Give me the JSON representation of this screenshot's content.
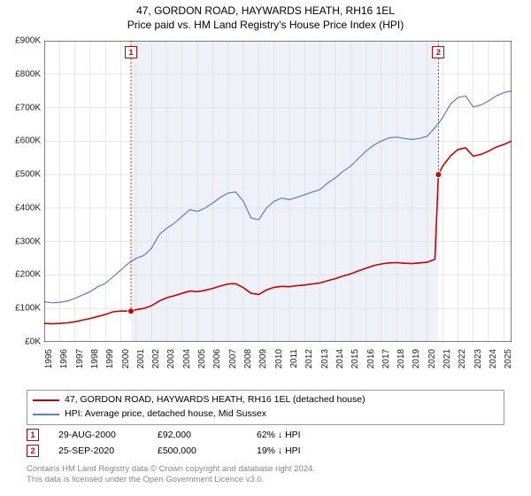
{
  "title": {
    "line1": "47, GORDON ROAD, HAYWARDS HEATH, RH16 1EL",
    "line2": "Price paid vs. HM Land Registry's House Price Index (HPI)",
    "fontsize": 12
  },
  "chart": {
    "type": "line",
    "background_color": "#ffffff",
    "shade_color": "#eef2f8",
    "shade_years": [
      2000.66,
      2020.73
    ],
    "grid_color": "#d8d8d8",
    "axis_color": "#000000",
    "tick_fontsize": 10,
    "ylim": [
      0,
      900
    ],
    "ytick_step": 100,
    "ytick_prefix": "£",
    "ytick_suffix": "K",
    "xlim": [
      1995,
      2025.5
    ],
    "xtick_step": 1,
    "xtick_rotation": -90,
    "series": [
      {
        "name": "HPI: Average price, detached house, Mid Sussex",
        "color": "#5b7fbf",
        "line_width": 1.2,
        "data": [
          [
            1995,
            120
          ],
          [
            1995.5,
            117
          ],
          [
            1996,
            118
          ],
          [
            1996.5,
            122
          ],
          [
            1997,
            130
          ],
          [
            1997.5,
            140
          ],
          [
            1998,
            150
          ],
          [
            1998.5,
            165
          ],
          [
            1999,
            175
          ],
          [
            1999.5,
            195
          ],
          [
            2000,
            215
          ],
          [
            2000.5,
            235
          ],
          [
            2001,
            250
          ],
          [
            2001.5,
            258
          ],
          [
            2002,
            280
          ],
          [
            2002.5,
            320
          ],
          [
            2003,
            340
          ],
          [
            2003.5,
            355
          ],
          [
            2004,
            375
          ],
          [
            2004.5,
            395
          ],
          [
            2005,
            390
          ],
          [
            2005.5,
            400
          ],
          [
            2006,
            415
          ],
          [
            2006.5,
            432
          ],
          [
            2007,
            445
          ],
          [
            2007.5,
            448
          ],
          [
            2008,
            420
          ],
          [
            2008.5,
            370
          ],
          [
            2009,
            365
          ],
          [
            2009.5,
            400
          ],
          [
            2010,
            420
          ],
          [
            2010.5,
            430
          ],
          [
            2011,
            425
          ],
          [
            2011.5,
            432
          ],
          [
            2012,
            440
          ],
          [
            2012.5,
            448
          ],
          [
            2013,
            455
          ],
          [
            2013.5,
            475
          ],
          [
            2014,
            490
          ],
          [
            2014.5,
            510
          ],
          [
            2015,
            525
          ],
          [
            2015.5,
            548
          ],
          [
            2016,
            570
          ],
          [
            2016.5,
            588
          ],
          [
            2017,
            600
          ],
          [
            2017.5,
            610
          ],
          [
            2018,
            612
          ],
          [
            2018.5,
            608
          ],
          [
            2019,
            605
          ],
          [
            2019.5,
            608
          ],
          [
            2020,
            615
          ],
          [
            2020.5,
            640
          ],
          [
            2021,
            670
          ],
          [
            2021.5,
            710
          ],
          [
            2022,
            730
          ],
          [
            2022.5,
            735
          ],
          [
            2023,
            702
          ],
          [
            2023.5,
            708
          ],
          [
            2024,
            720
          ],
          [
            2024.5,
            735
          ],
          [
            2025,
            745
          ],
          [
            2025.5,
            750
          ]
        ]
      },
      {
        "name": "47, GORDON ROAD, HAYWARDS HEATH, RH16 1EL (detached house)",
        "color": "#cc0000",
        "line_width": 1.6,
        "data": [
          [
            1995,
            55
          ],
          [
            1995.5,
            54
          ],
          [
            1996,
            55
          ],
          [
            1996.5,
            57
          ],
          [
            1997,
            60
          ],
          [
            1997.5,
            65
          ],
          [
            1998,
            70
          ],
          [
            1998.5,
            76
          ],
          [
            1999,
            82
          ],
          [
            1999.5,
            90
          ],
          [
            2000,
            92
          ],
          [
            2000.66,
            92
          ],
          [
            2001,
            96
          ],
          [
            2001.5,
            100
          ],
          [
            2002,
            108
          ],
          [
            2002.5,
            122
          ],
          [
            2003,
            132
          ],
          [
            2003.5,
            138
          ],
          [
            2004,
            145
          ],
          [
            2004.5,
            152
          ],
          [
            2005,
            150
          ],
          [
            2005.5,
            154
          ],
          [
            2006,
            160
          ],
          [
            2006.5,
            167
          ],
          [
            2007,
            173
          ],
          [
            2007.5,
            174
          ],
          [
            2008,
            162
          ],
          [
            2008.5,
            145
          ],
          [
            2009,
            142
          ],
          [
            2009.5,
            155
          ],
          [
            2010,
            163
          ],
          [
            2010.5,
            166
          ],
          [
            2011,
            165
          ],
          [
            2011.5,
            168
          ],
          [
            2012,
            170
          ],
          [
            2012.5,
            173
          ],
          [
            2013,
            176
          ],
          [
            2013.5,
            183
          ],
          [
            2014,
            189
          ],
          [
            2014.5,
            197
          ],
          [
            2015,
            203
          ],
          [
            2015.5,
            212
          ],
          [
            2016,
            220
          ],
          [
            2016.5,
            228
          ],
          [
            2017,
            233
          ],
          [
            2017.5,
            236
          ],
          [
            2018,
            237
          ],
          [
            2018.5,
            235
          ],
          [
            2019,
            234
          ],
          [
            2019.5,
            236
          ],
          [
            2020,
            238
          ],
          [
            2020.5,
            247
          ],
          [
            2020.73,
            500
          ],
          [
            2021,
            525
          ],
          [
            2021.5,
            555
          ],
          [
            2022,
            575
          ],
          [
            2022.5,
            580
          ],
          [
            2023,
            555
          ],
          [
            2023.5,
            560
          ],
          [
            2024,
            570
          ],
          [
            2024.5,
            582
          ],
          [
            2025,
            590
          ],
          [
            2025.5,
            600
          ]
        ]
      }
    ],
    "markers": [
      {
        "id": "1",
        "x": 2000.66,
        "y": 92,
        "color": "#cc0000"
      },
      {
        "id": "2",
        "x": 2020.73,
        "y": 500,
        "color": "#cc0000"
      }
    ]
  },
  "legend": {
    "border_color": "#999999",
    "items": [
      {
        "color": "#cc0000",
        "label": "47, GORDON ROAD, HAYWARDS HEATH, RH16 1EL (detached house)"
      },
      {
        "color": "#5b7fbf",
        "label": "HPI: Average price, detached house, Mid Sussex"
      }
    ]
  },
  "transactions": [
    {
      "id": "1",
      "date": "29-AUG-2000",
      "price": "£92,000",
      "vs_hpi": "62% ↓ HPI"
    },
    {
      "id": "2",
      "date": "25-SEP-2020",
      "price": "£500,000",
      "vs_hpi": "19% ↓ HPI"
    }
  ],
  "license": {
    "line1": "Contains HM Land Registry data © Crown copyright and database right 2024.",
    "line2": "This data is licensed under the Open Government Licence v3.0."
  }
}
